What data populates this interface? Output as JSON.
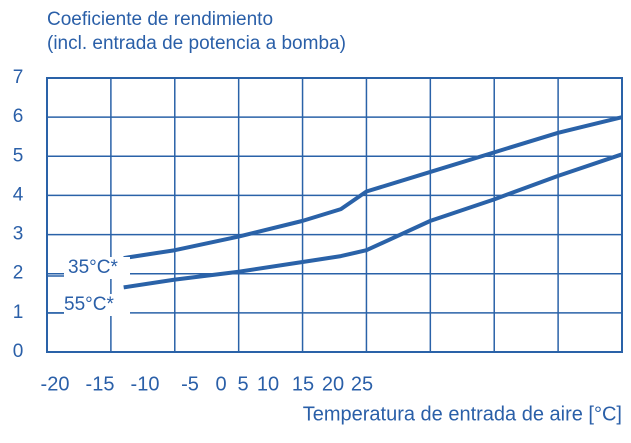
{
  "chart_data": {
    "type": "line",
    "title": "Coeficiente de rendimiento",
    "subtitle": "(incl. entrada de potencia a bomba)",
    "x_label": "Temperatura de entrada de aire [°C]",
    "x": [
      -14,
      -10,
      -5,
      0,
      3,
      5,
      10,
      15,
      20,
      25
    ],
    "series": [
      {
        "name": "35°C*",
        "color": "#2a62a8",
        "values": [
          2.4,
          2.6,
          2.95,
          3.35,
          3.65,
          4.1,
          4.6,
          5.1,
          5.6,
          6.0
        ]
      },
      {
        "name": "55°C*",
        "color": "#2a62a8",
        "values": [
          1.65,
          1.85,
          2.05,
          2.3,
          2.45,
          2.6,
          3.35,
          3.9,
          4.5,
          5.05
        ]
      }
    ],
    "xlim": [
      -20,
      25
    ],
    "xticks": [
      -20,
      -15,
      -10,
      -5,
      0,
      5,
      10,
      15,
      20,
      25
    ],
    "ylim": [
      0,
      7
    ],
    "yticks": [
      0,
      1,
      2,
      3,
      4,
      5,
      6,
      7
    ],
    "grid": true
  }
}
